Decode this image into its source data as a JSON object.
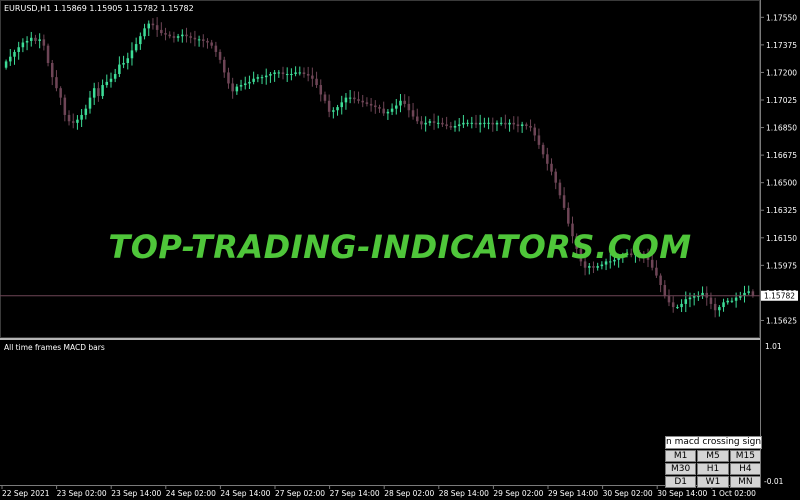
{
  "chart_data": [
    {
      "type": "candlestick",
      "symbol_header": "EURUSD,H1  1.15869 1.15905 1.15782 1.15782",
      "y_ticks": [
        "1.17550",
        "1.17375",
        "1.17200",
        "1.17025",
        "1.16850",
        "1.16675",
        "1.16500",
        "1.16325",
        "1.16150",
        "1.15975",
        "1.15800",
        "1.15625"
      ],
      "ylim": [
        1.1552,
        1.1766
      ],
      "current_price_label": "1.15782",
      "current_price": 1.15782,
      "x_ticks": [
        "22 Sep 2021",
        "23 Sep 02:00",
        "23 Sep 14:00",
        "24 Sep 02:00",
        "24 Sep 14:00",
        "27 Sep 02:00",
        "27 Sep 14:00",
        "28 Sep 02:00",
        "28 Sep 14:00",
        "29 Sep 02:00",
        "29 Sep 14:00",
        "30 Sep 02:00",
        "30 Sep 14:00",
        "1 Oct 02:00"
      ],
      "colors": {
        "bull": "#3ddc97",
        "bear": "#6e4556",
        "grid_line": "#6e4556",
        "text": "#ffffff",
        "separator": "#b4b4b4"
      },
      "closes": [
        1.1727,
        1.173,
        1.1733,
        1.1736,
        1.1739,
        1.174,
        1.1742,
        1.174,
        1.1741,
        1.1737,
        1.1726,
        1.1717,
        1.171,
        1.1704,
        1.1693,
        1.1689,
        1.1688,
        1.169,
        1.1693,
        1.1697,
        1.1704,
        1.171,
        1.1705,
        1.1712,
        1.1714,
        1.1716,
        1.1719,
        1.1725,
        1.1726,
        1.1729,
        1.1734,
        1.1738,
        1.1743,
        1.1748,
        1.1751,
        1.175,
        1.1747,
        1.1745,
        1.1744,
        1.1743,
        1.1742,
        1.1743,
        1.1744,
        1.1743,
        1.1742,
        1.1741,
        1.1741,
        1.174,
        1.1739,
        1.1737,
        1.1733,
        1.1728,
        1.172,
        1.1713,
        1.1708,
        1.1711,
        1.1712,
        1.1713,
        1.1714,
        1.1716,
        1.1717,
        1.1717,
        1.1718,
        1.1719,
        1.172,
        1.172,
        1.1719,
        1.1719,
        1.1719,
        1.172,
        1.172,
        1.1719,
        1.1718,
        1.1716,
        1.1712,
        1.1706,
        1.1702,
        1.1695,
        1.1696,
        1.1698,
        1.1701,
        1.1704,
        1.1704,
        1.1703,
        1.1702,
        1.1701,
        1.17,
        1.1699,
        1.1698,
        1.1697,
        1.1694,
        1.1695,
        1.1697,
        1.1699,
        1.1702,
        1.17,
        1.1696,
        1.1692,
        1.1689,
        1.1687,
        1.1688,
        1.1689,
        1.1688,
        1.1688,
        1.1687,
        1.1686,
        1.1685,
        1.1686,
        1.1687,
        1.1688,
        1.1688,
        1.1688,
        1.1687,
        1.1688,
        1.1688,
        1.1688,
        1.1687,
        1.1688,
        1.1688,
        1.1687,
        1.1688,
        1.1687,
        1.1686,
        1.1687,
        1.1686,
        1.1685,
        1.168,
        1.1674,
        1.1668,
        1.1662,
        1.1657,
        1.165,
        1.1642,
        1.1634,
        1.1624,
        1.1616,
        1.1608,
        1.16,
        1.1596,
        1.1597,
        1.1596,
        1.1597,
        1.1598,
        1.16,
        1.16,
        1.1601,
        1.1603,
        1.1604,
        1.1605,
        1.1604,
        1.1606,
        1.1605,
        1.1604,
        1.1601,
        1.1596,
        1.1591,
        1.1585,
        1.1578,
        1.1574,
        1.1571,
        1.1571,
        1.1573,
        1.1576,
        1.1577,
        1.1578,
        1.1578,
        1.158,
        1.1577,
        1.1573,
        1.1569,
        1.1571,
        1.1574,
        1.1575,
        1.1575,
        1.1577,
        1.1578,
        1.158,
        1.1581,
        1.15782
      ],
      "macd_panel": {
        "title": "All time frames MACD bars",
        "y_top_label": "1.01",
        "y_bottom_label": "-0.01"
      },
      "signal_panel": {
        "title": "n macd crossing signa",
        "buttons": [
          [
            "M1",
            "M5",
            "M15"
          ],
          [
            "M30",
            "H1",
            "H4"
          ],
          [
            "D1",
            "W1",
            "MN"
          ]
        ]
      }
    }
  ],
  "watermark": "TOP-TRADING-INDICATORS.COM"
}
